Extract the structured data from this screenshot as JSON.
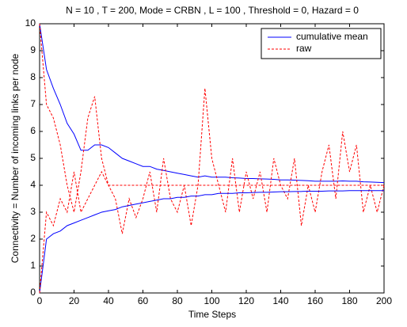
{
  "chart_data": {
    "type": "line",
    "title": "N = 10 , T = 200, Mode = CRBN , L = 100 , Threshold = 0, Hazard = 0",
    "xlabel": "Time Steps",
    "ylabel": "Connectivity = Number of incoming links per node",
    "x": [
      0,
      4,
      8,
      12,
      16,
      20,
      24,
      28,
      32,
      36,
      40,
      44,
      48,
      52,
      56,
      60,
      64,
      68,
      72,
      76,
      80,
      84,
      88,
      92,
      96,
      100,
      104,
      108,
      112,
      116,
      120,
      124,
      128,
      132,
      136,
      140,
      144,
      148,
      152,
      156,
      160,
      164,
      168,
      172,
      176,
      180,
      184,
      188,
      192,
      196,
      200
    ],
    "xlim": [
      0,
      200
    ],
    "xticks": [
      0,
      20,
      40,
      60,
      80,
      100,
      120,
      140,
      160,
      180,
      200
    ],
    "ylim": [
      0,
      10
    ],
    "yticks": [
      0,
      1,
      2,
      3,
      4,
      5,
      6,
      7,
      8,
      9,
      10
    ],
    "legend": "upper right",
    "series": [
      {
        "name": "cumulative mean",
        "color": "#0000ff",
        "dash": false,
        "values": [
          10,
          8.3,
          7.6,
          7,
          6.3,
          5.9,
          5.3,
          5.3,
          5.5,
          5.5,
          5.4,
          5.2,
          5,
          4.9,
          4.8,
          4.7,
          4.7,
          4.6,
          4.55,
          4.5,
          4.45,
          4.4,
          4.35,
          4.3,
          4.35,
          4.3,
          4.3,
          4.3,
          4.28,
          4.27,
          4.25,
          4.25,
          4.24,
          4.23,
          4.22,
          4.2,
          4.2,
          4.19,
          4.18,
          4.17,
          4.15,
          4.15,
          4.15,
          4.15,
          4.16,
          4.15,
          4.15,
          4.13,
          4.12,
          4.11,
          4.1
        ]
      },
      {
        "name": "raw",
        "color": "#ff0000",
        "dash": true,
        "values": [
          10,
          7,
          6.5,
          5.5,
          4,
          3,
          4.5,
          6.5,
          7.3,
          5,
          4,
          3.5,
          2.2,
          3.5,
          2.8,
          3.5,
          4.5,
          3,
          5,
          3.5,
          3,
          4,
          2.5,
          4,
          7.6,
          5,
          4,
          3,
          5,
          3,
          4.5,
          3.5,
          4.5,
          3,
          5,
          4,
          3.5,
          5,
          2.5,
          4,
          3,
          4.5,
          5.5,
          3.5,
          6,
          4.5,
          5.5,
          3,
          4,
          3,
          4
        ]
      },
      {
        "color": "#0000ff",
        "dash": false,
        "values": [
          0,
          2,
          2.2,
          2.3,
          2.5,
          2.6,
          2.7,
          2.8,
          2.9,
          3,
          3.05,
          3.1,
          3.2,
          3.25,
          3.3,
          3.35,
          3.4,
          3.45,
          3.5,
          3.5,
          3.55,
          3.55,
          3.6,
          3.6,
          3.65,
          3.65,
          3.7,
          3.7,
          3.7,
          3.72,
          3.72,
          3.73,
          3.74,
          3.74,
          3.75,
          3.76,
          3.76,
          3.77,
          3.77,
          3.78,
          3.78,
          3.78,
          3.79,
          3.79,
          3.79,
          3.8,
          3.8,
          3.8,
          3.8,
          3.8,
          3.8
        ]
      },
      {
        "color": "#ff0000",
        "dash": true,
        "values": [
          0,
          3,
          2.5,
          3.5,
          3,
          4.5,
          3,
          3.5,
          4,
          4.5,
          4,
          4,
          4,
          4,
          4,
          4,
          4,
          4,
          4,
          4,
          4,
          4,
          4,
          4,
          4,
          4,
          4,
          4,
          4,
          4,
          4,
          4,
          4,
          4,
          4,
          4,
          4,
          4,
          4,
          4,
          4,
          4,
          4,
          4,
          4,
          4,
          4,
          4,
          4,
          4,
          4
        ]
      }
    ]
  }
}
